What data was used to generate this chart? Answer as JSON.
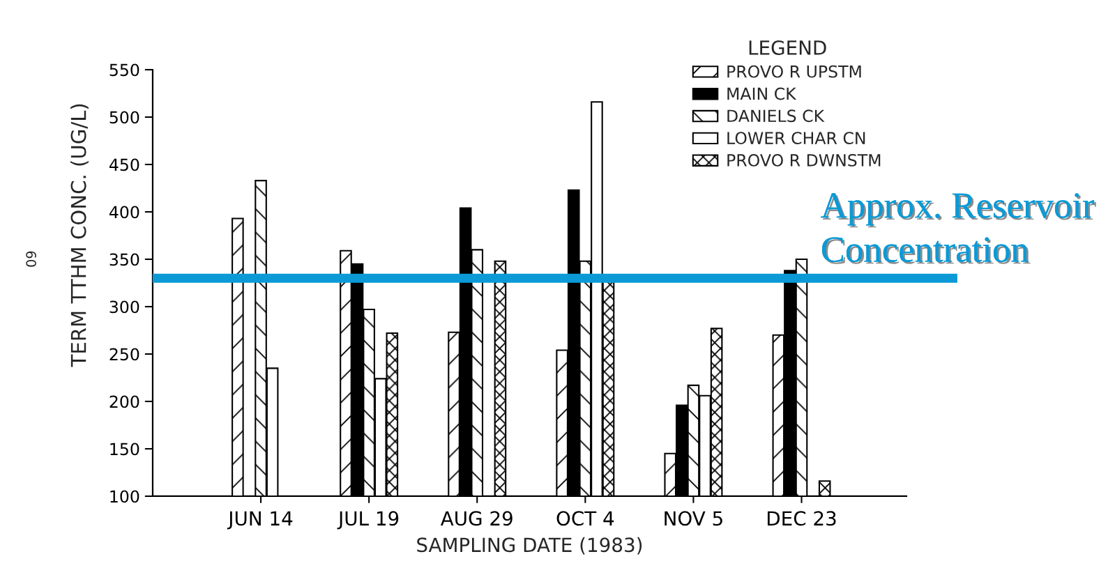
{
  "chart_data": {
    "type": "bar",
    "xlabel": "SAMPLING DATE (1983)",
    "ylabel": "TERM TTHM CONC. (UG/L)",
    "legend_title": "LEGEND",
    "categories": [
      "JUN 14",
      "JUL 19",
      "AUG 29",
      "OCT 4",
      "NOV 5",
      "DEC 23"
    ],
    "series": [
      {
        "name": "PROVO R UPSTM",
        "color": "#000000",
        "values": [
          393,
          359,
          273,
          254,
          145,
          270
        ]
      },
      {
        "name": "MAIN CK",
        "color": "#000000",
        "values": [
          null,
          345,
          404,
          423,
          196,
          338
        ]
      },
      {
        "name": "DANIELS CK",
        "color": "#000000",
        "values": [
          433,
          297,
          360,
          348,
          217,
          350
        ]
      },
      {
        "name": "LOWER CHAR CN",
        "color": "#ffffff",
        "values": [
          235,
          224,
          null,
          516,
          206,
          null
        ]
      },
      {
        "name": "PROVO R DWNSTM",
        "color": "#000000",
        "values": [
          null,
          272,
          348,
          328,
          277,
          116
        ]
      }
    ],
    "ylim": [
      100,
      550
    ],
    "yticks": [
      100,
      150,
      200,
      250,
      300,
      350,
      400,
      450,
      500,
      550
    ],
    "legend": "top right",
    "ref_lines": [
      {
        "axis": "y",
        "value": 330,
        "label": "Approx. Reservoir\nConcentration",
        "color": "#0b9ad6"
      }
    ],
    "annotations": [
      "60"
    ]
  }
}
